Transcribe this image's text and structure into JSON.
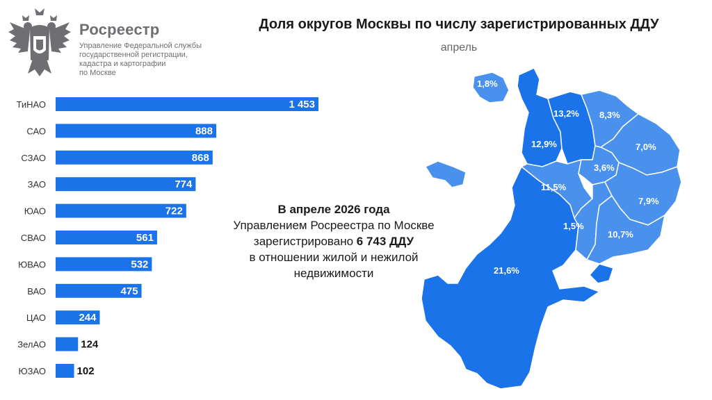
{
  "header": {
    "brand": "Росреестр",
    "dept_lines": [
      "Управление Федеральной службы",
      "государственной регистрации,",
      "кадастра и картографии",
      "по Москве"
    ],
    "title": "Доля округов Москвы по числу зарегистрированных ДДУ",
    "subtitle": "апрель"
  },
  "note": {
    "line1": "В апреле 2026 года",
    "line2": "Управлением Росреестра по Москве",
    "line3_prefix": "зарегистрировано ",
    "line3_bold": "6 743 ДДУ",
    "line4": "в отношении жилой и нежилой",
    "line5": "недвижимости"
  },
  "colors": {
    "bar": "#1a73e8",
    "map_dark": "#1a73e8",
    "map_light": "#4a91ee",
    "label_dark": "#111111"
  },
  "chart_data": {
    "type": "bar",
    "orientation": "horizontal",
    "categories": [
      "ТиНАО",
      "САО",
      "СЗАО",
      "ЗАО",
      "ЮАО",
      "СВАО",
      "ЮВАО",
      "ВАО",
      "ЦАО",
      "ЗелАО",
      "ЮЗАО"
    ],
    "values": [
      1453,
      888,
      868,
      774,
      722,
      561,
      532,
      475,
      244,
      124,
      102
    ],
    "value_labels": [
      "1 453",
      "888",
      "868",
      "774",
      "722",
      "561",
      "532",
      "475",
      "244",
      "124",
      "102"
    ],
    "xlim": [
      0,
      1453
    ]
  },
  "map_data": {
    "type": "choropleth",
    "labels": [
      "1,8%",
      "13,2%",
      "8,3%",
      "12,9%",
      "7,0%",
      "3,6%",
      "11,5%",
      "7,9%",
      "1,5%",
      "10,7%",
      "21,6%"
    ]
  }
}
